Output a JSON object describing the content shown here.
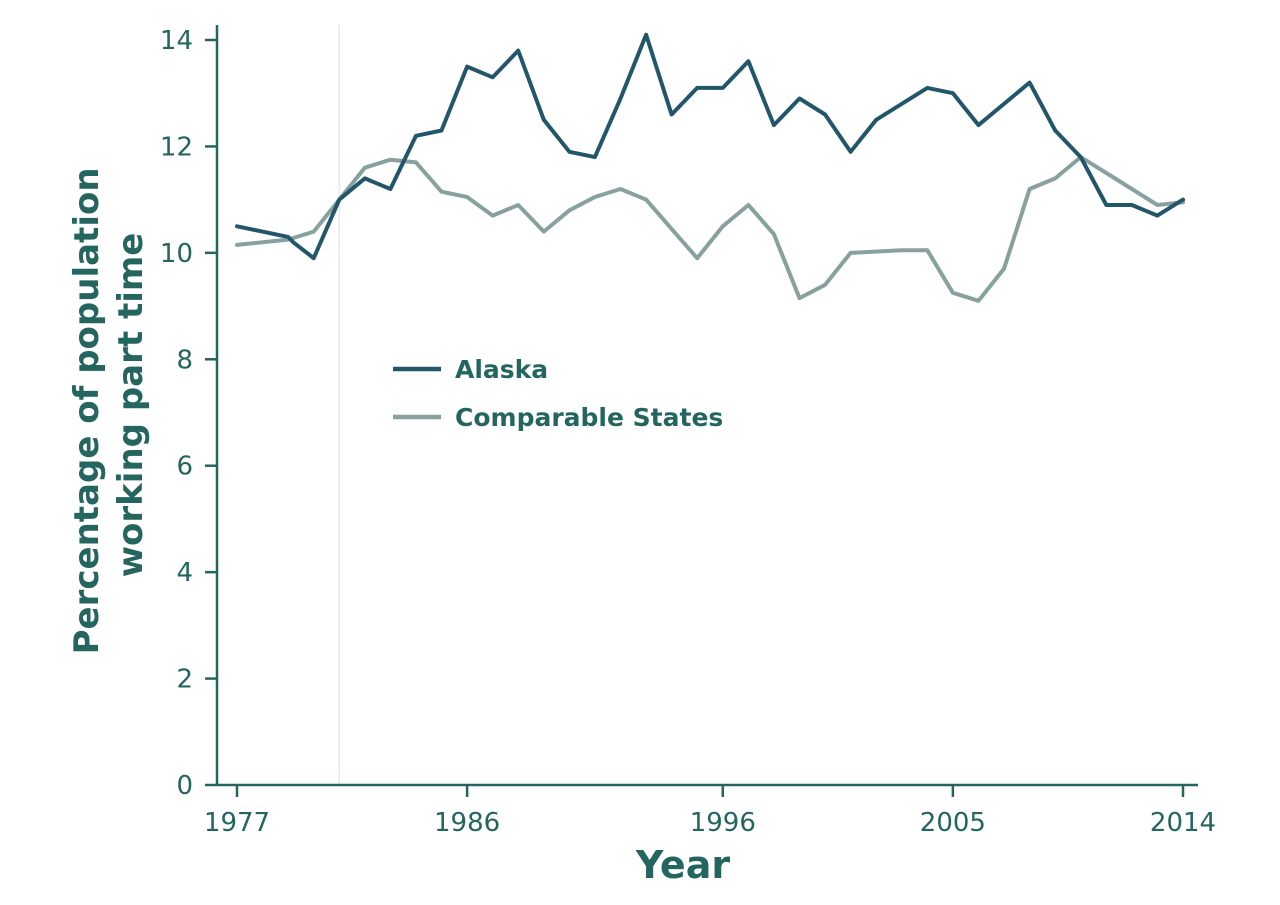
{
  "chart_data": {
    "type": "line",
    "title": "",
    "xlabel": "Year",
    "ylabel": "Percentage of population working part time",
    "ylabel_lines": [
      "Percentage of population",
      "working part time"
    ],
    "xlim": [
      1977,
      2014
    ],
    "ylim": [
      0,
      14
    ],
    "x_ticks": [
      1977,
      1986,
      1996,
      2005,
      2014
    ],
    "y_ticks": [
      0,
      2,
      4,
      6,
      8,
      10,
      12,
      14
    ],
    "grid": false,
    "legend": "center-left",
    "colors": {
      "axis": "#24665f",
      "alaska": "#22566a",
      "comparable": "#88a09e",
      "reference_line": "#ece7e7"
    },
    "reference_x": 1981,
    "series": [
      {
        "name": "Alaska",
        "color": "#22566a",
        "points": [
          [
            1977,
            10.5
          ],
          [
            1979,
            10.3
          ],
          [
            1979.2,
            10.2
          ],
          [
            1980,
            9.9
          ],
          [
            1981,
            11.0
          ],
          [
            1982,
            11.4
          ],
          [
            1983,
            11.2
          ],
          [
            1984,
            12.2
          ],
          [
            1985,
            12.3
          ],
          [
            1986,
            13.5
          ],
          [
            1987,
            13.3
          ],
          [
            1988,
            13.8
          ],
          [
            1989,
            12.5
          ],
          [
            1990,
            11.9
          ],
          [
            1991,
            11.8
          ],
          [
            1992,
            12.9
          ],
          [
            1993,
            14.1
          ],
          [
            1994,
            12.6
          ],
          [
            1995,
            13.1
          ],
          [
            1996,
            13.1
          ],
          [
            1997,
            13.6
          ],
          [
            1998,
            12.4
          ],
          [
            1999,
            12.9
          ],
          [
            2000,
            12.6
          ],
          [
            2001,
            11.9
          ],
          [
            2002,
            12.5
          ],
          [
            2004,
            13.1
          ],
          [
            2005,
            13.0
          ],
          [
            2006,
            12.4
          ],
          [
            2008,
            13.2
          ],
          [
            2009,
            12.3
          ],
          [
            2010,
            11.8
          ],
          [
            2011,
            10.9
          ],
          [
            2012,
            10.9
          ],
          [
            2013,
            10.7
          ],
          [
            2014,
            11.0
          ]
        ]
      },
      {
        "name": "Comparable States",
        "color": "#88a09e",
        "points": [
          [
            1977,
            10.15
          ],
          [
            1979,
            10.25
          ],
          [
            1980,
            10.4
          ],
          [
            1981,
            11.0
          ],
          [
            1982,
            11.6
          ],
          [
            1983,
            11.75
          ],
          [
            1984,
            11.7
          ],
          [
            1985,
            11.15
          ],
          [
            1986,
            11.05
          ],
          [
            1987,
            10.7
          ],
          [
            1988,
            10.9
          ],
          [
            1989,
            10.4
          ],
          [
            1990,
            10.8
          ],
          [
            1991,
            11.05
          ],
          [
            1992,
            11.2
          ],
          [
            1993,
            11.0
          ],
          [
            1994,
            10.45
          ],
          [
            1995,
            9.9
          ],
          [
            1996,
            10.5
          ],
          [
            1997,
            10.9
          ],
          [
            1998,
            10.35
          ],
          [
            1999,
            9.15
          ],
          [
            2000,
            9.4
          ],
          [
            2001,
            10.0
          ],
          [
            2003,
            10.05
          ],
          [
            2004,
            10.05
          ],
          [
            2005,
            9.25
          ],
          [
            2006,
            9.1
          ],
          [
            2007,
            9.7
          ],
          [
            2008,
            11.2
          ],
          [
            2009,
            11.4
          ],
          [
            2010,
            11.8
          ],
          [
            2011,
            11.5
          ],
          [
            2012,
            11.2
          ],
          [
            2013,
            10.9
          ],
          [
            2014,
            10.95
          ]
        ]
      }
    ]
  }
}
